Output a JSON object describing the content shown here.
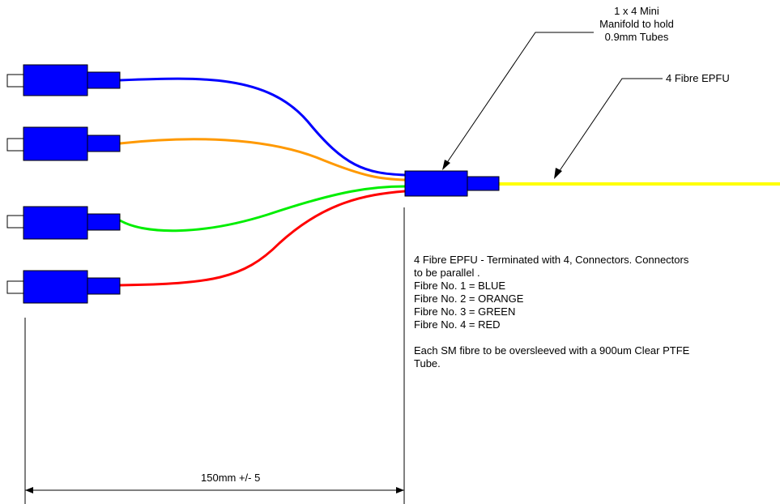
{
  "labels": {
    "manifold": [
      "1 x 4 Mini",
      "Manifold to hold",
      "0.9mm Tubes"
    ],
    "epfu": "4 Fibre EPFU",
    "dimension": "150mm +/- 5"
  },
  "notes": {
    "line1": "4 Fibre EPFU - Terminated with 4,  Connectors.  Connectors",
    "line2": "to be parallel .",
    "fibres": [
      "Fibre No. 1 = BLUE",
      "Fibre No. 2 = ORANGE",
      "Fibre No. 3 = GREEN",
      "Fibre No. 4 = RED"
    ],
    "sleeve_line1": "Each SM fibre to be oversleeved with a 900um Clear PTFE",
    "sleeve_line2": "Tube."
  },
  "colors": {
    "connector": "#0000ff",
    "fibre_blue": "#0000ff",
    "fibre_orange": "#ff9900",
    "fibre_green": "#00ee00",
    "fibre_red": "#ff0000",
    "epfu": "#ffff00"
  }
}
